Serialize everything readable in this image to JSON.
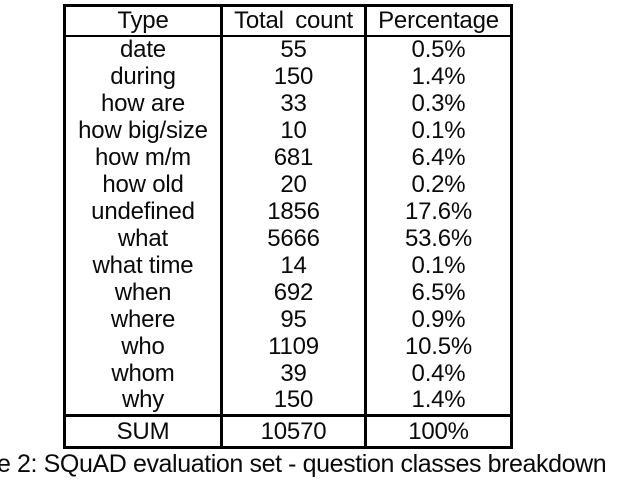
{
  "table": {
    "headers": [
      "Type",
      "Total count",
      "Percentage"
    ],
    "rows": [
      {
        "type": "date",
        "count": "55",
        "pct": "0.5%"
      },
      {
        "type": "during",
        "count": "150",
        "pct": "1.4%"
      },
      {
        "type": "how are",
        "count": "33",
        "pct": "0.3%"
      },
      {
        "type": "how big/size",
        "count": "10",
        "pct": "0.1%"
      },
      {
        "type": "how m/m",
        "count": "681",
        "pct": "6.4%"
      },
      {
        "type": "how old",
        "count": "20",
        "pct": "0.2%"
      },
      {
        "type": "undefined",
        "count": "1856",
        "pct": "17.6%"
      },
      {
        "type": "what",
        "count": "5666",
        "pct": "53.6%"
      },
      {
        "type": "what time",
        "count": "14",
        "pct": "0.1%"
      },
      {
        "type": "when",
        "count": "692",
        "pct": "6.5%"
      },
      {
        "type": "where",
        "count": "95",
        "pct": "0.9%"
      },
      {
        "type": "who",
        "count": "1109",
        "pct": "10.5%"
      },
      {
        "type": "whom",
        "count": "39",
        "pct": "0.4%"
      },
      {
        "type": "why",
        "count": "150",
        "pct": "1.4%"
      }
    ],
    "sum_row": {
      "type": "SUM",
      "count": "10570",
      "pct": "100%"
    }
  },
  "caption": "e 2: SQuAD evaluation set - question classes breakdown",
  "colors": {
    "text": "#0a0a0a",
    "border": "#000000",
    "background": "#ffffff"
  }
}
